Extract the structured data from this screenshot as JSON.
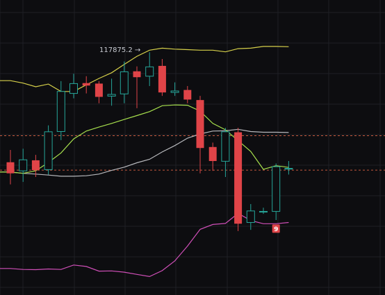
{
  "chart_data": {
    "type": "candlestick",
    "annotations": {
      "high_label": "117875.2 →",
      "marker_label": "9"
    },
    "colors": {
      "background": "#0d0d10",
      "grid": "#1e2025",
      "up": "#26a69a",
      "down": "#e04448",
      "upper_band": "#d6d04a",
      "middle_band": "#a7e04d",
      "ma_white": "#b8b9bd",
      "lower_band": "#d04fb8",
      "dashed_line": "#c65a3e",
      "label": "#c9ccd3"
    },
    "price_range": [
      108000,
      120000
    ],
    "horizontal_levels": [
      114480,
      113080
    ],
    "candles": [
      {
        "o": 113400,
        "c": 112950,
        "h": 113900,
        "l": 112500
      },
      {
        "o": 113050,
        "c": 113500,
        "h": 113950,
        "l": 112600
      },
      {
        "o": 113480,
        "c": 113080,
        "h": 113700,
        "l": 112800
      },
      {
        "o": 113100,
        "c": 114640,
        "h": 114900,
        "l": 112900
      },
      {
        "o": 114650,
        "c": 116280,
        "h": 116700,
        "l": 114300
      },
      {
        "o": 116200,
        "c": 116600,
        "h": 117000,
        "l": 116000
      },
      {
        "o": 116620,
        "c": 116520,
        "h": 116900,
        "l": 116200
      },
      {
        "o": 116600,
        "c": 116060,
        "h": 116700,
        "l": 115800
      },
      {
        "o": 116090,
        "c": 116160,
        "h": 116800,
        "l": 115700
      },
      {
        "o": 116180,
        "c": 117080,
        "h": 117500,
        "l": 115800
      },
      {
        "o": 117100,
        "c": 116860,
        "h": 117300,
        "l": 115600
      },
      {
        "o": 116900,
        "c": 117280,
        "h": 117875,
        "l": 116500
      },
      {
        "o": 117320,
        "c": 116240,
        "h": 117600,
        "l": 116100
      },
      {
        "o": 116240,
        "c": 116300,
        "h": 116650,
        "l": 116100
      },
      {
        "o": 116340,
        "c": 115950,
        "h": 116500,
        "l": 115800
      },
      {
        "o": 115930,
        "c": 113980,
        "h": 116100,
        "l": 112950
      },
      {
        "o": 114020,
        "c": 113450,
        "h": 114200,
        "l": 113050
      },
      {
        "o": 113440,
        "c": 114640,
        "h": 114800,
        "l": 112800
      },
      {
        "o": 114620,
        "c": 110900,
        "h": 114800,
        "l": 110600
      },
      {
        "o": 110950,
        "c": 111420,
        "h": 111700,
        "l": 110650
      },
      {
        "o": 111400,
        "c": 111400,
        "h": 111550,
        "l": 111300
      },
      {
        "o": 111400,
        "c": 113220,
        "h": 113350,
        "l": 111050
      },
      {
        "o": 113150,
        "c": 113150,
        "h": 113450,
        "l": 112900
      }
    ],
    "upper_band": [
      116720,
      116620,
      116470,
      116580,
      116280,
      116280,
      116550,
      116810,
      117040,
      117380,
      117710,
      117960,
      118040,
      118000,
      117980,
      117960,
      117960,
      117890,
      118020,
      118040,
      118110,
      118110,
      118100
    ],
    "middle_band": [
      113000,
      112950,
      113050,
      113390,
      113780,
      114350,
      114670,
      114830,
      114980,
      115140,
      115300,
      115460,
      115700,
      115730,
      115720,
      115480,
      114980,
      114720,
      114280,
      113840,
      113110,
      113260,
      113190
    ],
    "ma_white": [
      113000,
      112950,
      112920,
      112880,
      112830,
      112830,
      112850,
      112920,
      113070,
      113200,
      113380,
      113520,
      113820,
      114080,
      114380,
      114550,
      114670,
      114680,
      114740,
      114650,
      114620,
      114620,
      114610
    ],
    "lower_band": [
      109080,
      109040,
      109030,
      109060,
      109040,
      109220,
      109160,
      108970,
      108980,
      108930,
      108840,
      108750,
      108990,
      109390,
      109990,
      110670,
      110870,
      110910,
      111320,
      111030,
      110900,
      110900,
      110950
    ],
    "marker": {
      "candle_index": 21,
      "price": 110700
    }
  }
}
